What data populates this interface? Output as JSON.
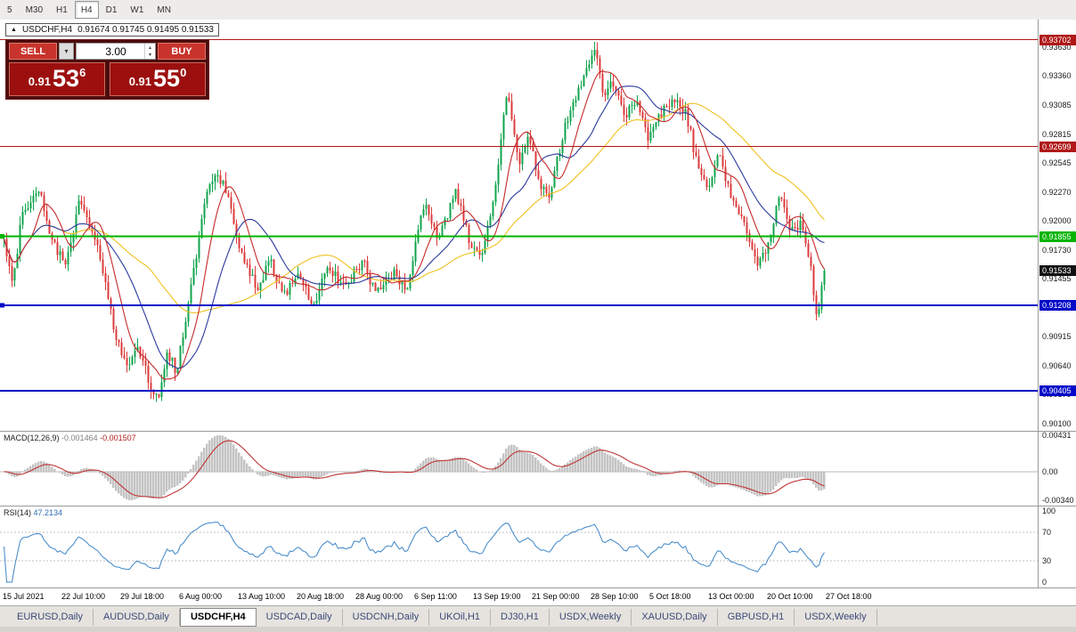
{
  "icons": {
    "chart_arrow": "▲",
    "dropdown": "▾",
    "spin_up": "▴",
    "spin_down": "▾"
  },
  "toolbar": {
    "timeframes": [
      "5",
      "M30",
      "H1",
      "H4",
      "D1",
      "W1",
      "MN"
    ],
    "active": "H4"
  },
  "chart": {
    "symbol_label": "USDCHF,H4",
    "ohlc_label": "0.91674 0.91745 0.91495 0.91533"
  },
  "trade_panel": {
    "sell_label": "SELL",
    "buy_label": "BUY",
    "volume": "3.00",
    "sell_price": {
      "prefix": "0.91",
      "big": "53",
      "sup": "6"
    },
    "buy_price": {
      "prefix": "0.91",
      "big": "55",
      "sup": "0"
    }
  },
  "price_axis": {
    "labels": [
      "0.93630",
      "0.93360",
      "0.93085",
      "0.92815",
      "0.92545",
      "0.92270",
      "0.92000",
      "0.91730",
      "0.91455",
      "0.91185",
      "0.90915",
      "0.90640",
      "0.90370",
      "0.90100"
    ]
  },
  "levels": [
    {
      "price": 0.93702,
      "label": "0.93702",
      "color": "#b01818",
      "width": 1
    },
    {
      "price": 0.92699,
      "label": "0.92699",
      "color": "#b01818",
      "width": 1
    },
    {
      "price": 0.91855,
      "label": "0.91855",
      "color": "#00b400",
      "width": 2,
      "marker": true
    },
    {
      "price": 0.91208,
      "label": "0.91208",
      "color": "#0008c8",
      "width": 2,
      "marker": true
    },
    {
      "price": 0.90405,
      "label": "0.90405",
      "color": "#0008c8",
      "width": 2
    }
  ],
  "current_price": {
    "value": 0.91533,
    "label": "0.91533",
    "box_color": "#111111"
  },
  "chart_data": {
    "type": "candlestick",
    "symbol": "USDCHF",
    "timeframe": "H4",
    "current_bar": {
      "open": 0.91674,
      "high": 0.91745,
      "low": 0.91495,
      "close": 0.91533
    },
    "price_range": [
      0.9003,
      0.9389
    ],
    "num_candles": 308,
    "last_close": 0.91533,
    "colors": {
      "up": "#10a44c",
      "down": "#dc3b3b"
    },
    "moving_averages": [
      {
        "name": "slow",
        "period": 50,
        "color": "#f0c020"
      },
      {
        "name": "medium",
        "period": 22,
        "color": "#2b3a9e"
      },
      {
        "name": "fast",
        "period": 10,
        "color": "#c62a2a"
      }
    ],
    "path_keypoints": [
      [
        0.0,
        0.918
      ],
      [
        0.01,
        0.914
      ],
      [
        0.022,
        0.9205
      ],
      [
        0.043,
        0.9232
      ],
      [
        0.06,
        0.9178
      ],
      [
        0.075,
        0.916
      ],
      [
        0.092,
        0.9218
      ],
      [
        0.105,
        0.9195
      ],
      [
        0.118,
        0.9165
      ],
      [
        0.135,
        0.9095
      ],
      [
        0.151,
        0.9062
      ],
      [
        0.162,
        0.9088
      ],
      [
        0.178,
        0.9045
      ],
      [
        0.189,
        0.9033
      ],
      [
        0.199,
        0.9078
      ],
      [
        0.21,
        0.9058
      ],
      [
        0.227,
        0.9135
      ],
      [
        0.247,
        0.9225
      ],
      [
        0.259,
        0.9243
      ],
      [
        0.272,
        0.9228
      ],
      [
        0.287,
        0.9175
      ],
      [
        0.308,
        0.9136
      ],
      [
        0.324,
        0.9163
      ],
      [
        0.341,
        0.913
      ],
      [
        0.361,
        0.9152
      ],
      [
        0.377,
        0.9117
      ],
      [
        0.394,
        0.9158
      ],
      [
        0.415,
        0.9137
      ],
      [
        0.437,
        0.9163
      ],
      [
        0.453,
        0.9132
      ],
      [
        0.475,
        0.9152
      ],
      [
        0.491,
        0.9137
      ],
      [
        0.513,
        0.9222
      ],
      [
        0.529,
        0.918
      ],
      [
        0.551,
        0.9228
      ],
      [
        0.567,
        0.9182
      ],
      [
        0.583,
        0.9165
      ],
      [
        0.6,
        0.9238
      ],
      [
        0.614,
        0.9325
      ],
      [
        0.627,
        0.9252
      ],
      [
        0.64,
        0.9282
      ],
      [
        0.653,
        0.923
      ],
      [
        0.666,
        0.9225
      ],
      [
        0.683,
        0.9288
      ],
      [
        0.699,
        0.9318
      ],
      [
        0.712,
        0.9345
      ],
      [
        0.721,
        0.9362
      ],
      [
        0.731,
        0.9312
      ],
      [
        0.742,
        0.933
      ],
      [
        0.756,
        0.93
      ],
      [
        0.772,
        0.931
      ],
      [
        0.785,
        0.9275
      ],
      [
        0.799,
        0.9298
      ],
      [
        0.815,
        0.9315
      ],
      [
        0.831,
        0.9303
      ],
      [
        0.848,
        0.9242
      ],
      [
        0.858,
        0.923
      ],
      [
        0.871,
        0.9262
      ],
      [
        0.885,
        0.9225
      ],
      [
        0.902,
        0.9198
      ],
      [
        0.918,
        0.9162
      ],
      [
        0.932,
        0.9178
      ],
      [
        0.945,
        0.9222
      ],
      [
        0.959,
        0.9193
      ],
      [
        0.972,
        0.9198
      ],
      [
        0.983,
        0.9158
      ],
      [
        0.991,
        0.9108
      ],
      [
        1.0,
        0.91533
      ]
    ]
  },
  "macd_panel": {
    "label": "MACD(12,26,9)",
    "value_main": "-0.001464",
    "value_signal": "-0.001507",
    "axis_labels": [
      "0.00431",
      "0.00",
      "-0.00340"
    ],
    "range": [
      -0.004,
      0.0048
    ],
    "histogram_color": "#c4c4c4",
    "signal_color": "#c03535"
  },
  "rsi_panel": {
    "label": "RSI(14)",
    "value": "47.2134",
    "axis_labels": [
      "100",
      "70",
      "30",
      "0"
    ],
    "levels": [
      70,
      30
    ],
    "line_color": "#3d85c8"
  },
  "time_axis": {
    "labels": [
      "15 Jul 2021",
      "22 Jul 10:00",
      "29 Jul 18:00",
      "6 Aug 00:00",
      "13 Aug 10:00",
      "20 Aug 18:00",
      "28 Aug 00:00",
      "6 Sep 11:00",
      "13 Sep 19:00",
      "21 Sep 00:00",
      "28 Sep 10:00",
      "5 Oct 18:00",
      "13 Oct 00:00",
      "20 Oct 10:00",
      "27 Oct 18:00"
    ]
  },
  "tabs": {
    "items": [
      "EURUSD,Daily",
      "AUDUSD,Daily",
      "USDCHF,H4",
      "USDCAD,Daily",
      "USDCNH,Daily",
      "UKOil,H1",
      "DJ30,H1",
      "USDX,Weekly",
      "XAUUSD,Daily",
      "GBPUSD,H1",
      "USDX,Weekly"
    ],
    "active_index": 2
  }
}
